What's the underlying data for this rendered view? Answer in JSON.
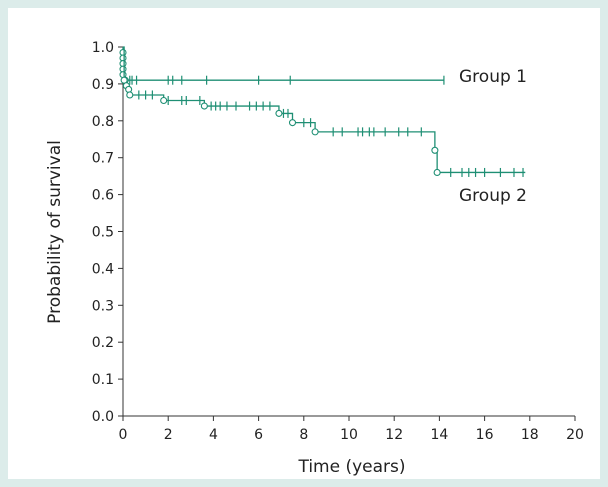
{
  "chart_data": {
    "type": "line",
    "subtype": "kaplan-meier step",
    "xlabel": "Time (years)",
    "ylabel": "Probability of survival",
    "xlim": [
      0,
      20
    ],
    "ylim": [
      0.0,
      1.0
    ],
    "xticks": [
      "0",
      "2",
      "4",
      "6",
      "8",
      "10",
      "12",
      "14",
      "16",
      "18",
      "20"
    ],
    "yticks": [
      "0.0",
      "0.1",
      "0.2",
      "0.3",
      "0.4",
      "0.5",
      "0.6",
      "0.7",
      "0.8",
      "0.9",
      "1.0"
    ],
    "grid": false,
    "line_color": "#1f8f74",
    "series": [
      {
        "name": "Group 1",
        "steps": [
          {
            "x": 0.0,
            "y": 1.0
          },
          {
            "x": 0.0,
            "y": 0.985
          },
          {
            "x": 0.0,
            "y": 0.97
          },
          {
            "x": 0.0,
            "y": 0.955
          },
          {
            "x": 0.0,
            "y": 0.94
          },
          {
            "x": 0.0,
            "y": 0.925
          },
          {
            "x": 0.1,
            "y": 0.91
          }
        ],
        "end_x": 14.2,
        "events": [
          {
            "x": 0.0,
            "y": 0.985
          },
          {
            "x": 0.0,
            "y": 0.97
          },
          {
            "x": 0.0,
            "y": 0.955
          },
          {
            "x": 0.0,
            "y": 0.94
          },
          {
            "x": 0.0,
            "y": 0.925
          },
          {
            "x": 0.1,
            "y": 0.91
          }
        ],
        "censored": [
          0.3,
          0.4,
          0.6,
          2.0,
          2.2,
          2.6,
          3.7,
          6.0,
          7.4,
          14.2
        ]
      },
      {
        "name": "Group 2",
        "steps": [
          {
            "x": 0.0,
            "y": 1.0
          },
          {
            "x": 0.05,
            "y": 0.91
          },
          {
            "x": 0.15,
            "y": 0.895
          },
          {
            "x": 0.25,
            "y": 0.885
          },
          {
            "x": 0.3,
            "y": 0.87
          },
          {
            "x": 1.8,
            "y": 0.855
          },
          {
            "x": 3.6,
            "y": 0.84
          },
          {
            "x": 6.9,
            "y": 0.82
          },
          {
            "x": 7.5,
            "y": 0.795
          },
          {
            "x": 8.5,
            "y": 0.77
          },
          {
            "x": 13.8,
            "y": 0.72
          },
          {
            "x": 13.9,
            "y": 0.66
          }
        ],
        "end_x": 17.8,
        "events": [
          {
            "x": 0.05,
            "y": 0.91
          },
          {
            "x": 0.15,
            "y": 0.895
          },
          {
            "x": 0.25,
            "y": 0.885
          },
          {
            "x": 0.3,
            "y": 0.87
          },
          {
            "x": 1.8,
            "y": 0.855
          },
          {
            "x": 3.6,
            "y": 0.84
          },
          {
            "x": 6.9,
            "y": 0.82
          },
          {
            "x": 7.5,
            "y": 0.795
          },
          {
            "x": 8.5,
            "y": 0.77
          },
          {
            "x": 13.8,
            "y": 0.72
          },
          {
            "x": 13.9,
            "y": 0.66
          }
        ],
        "censored": [
          0.7,
          1.0,
          1.3,
          2.0,
          2.6,
          2.8,
          3.4,
          3.9,
          4.1,
          4.3,
          4.6,
          5.0,
          5.6,
          5.9,
          6.2,
          6.5,
          7.1,
          7.3,
          8.0,
          8.3,
          9.3,
          9.7,
          10.4,
          10.6,
          10.9,
          11.1,
          11.6,
          12.2,
          12.6,
          13.2,
          14.5,
          15.0,
          15.3,
          15.6,
          16.0,
          16.7,
          17.3,
          17.7
        ]
      }
    ]
  }
}
